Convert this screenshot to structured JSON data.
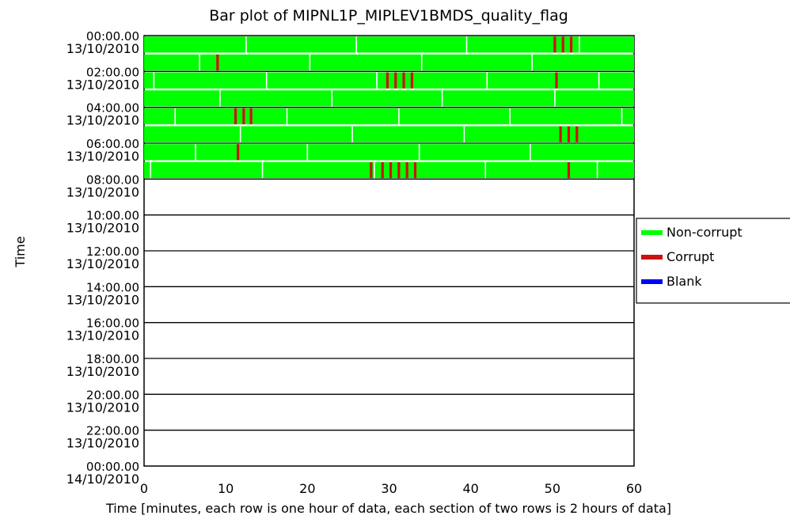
{
  "chart_data": {
    "type": "bar",
    "title": "Bar plot of MIPNL1P_MIPLEV1BMDS_quality_flag",
    "xlabel": "Time [minutes, each row is one hour of data, each section of two rows is 2 hours of data]",
    "ylabel": "Time",
    "xlim": [
      0,
      60
    ],
    "x_ticks": [
      "0",
      "10",
      "20",
      "30",
      "40",
      "50",
      "60"
    ],
    "y_tick_labels": [
      {
        "time": "00:00.00",
        "date": "13/10/2010"
      },
      {
        "time": "02:00.00",
        "date": "13/10/2010"
      },
      {
        "time": "04:00.00",
        "date": "13/10/2010"
      },
      {
        "time": "06:00.00",
        "date": "13/10/2010"
      },
      {
        "time": "08:00.00",
        "date": "13/10/2010"
      },
      {
        "time": "10:00.00",
        "date": "13/10/2010"
      },
      {
        "time": "12:00.00",
        "date": "13/10/2010"
      },
      {
        "time": "14:00.00",
        "date": "13/10/2010"
      },
      {
        "time": "16:00.00",
        "date": "13/10/2010"
      },
      {
        "time": "18:00.00",
        "date": "13/10/2010"
      },
      {
        "time": "20:00.00",
        "date": "13/10/2010"
      },
      {
        "time": "22:00.00",
        "date": "13/10/2010"
      },
      {
        "time": "00:00.00",
        "date": "14/10/2010"
      }
    ],
    "legend_position": "right",
    "legend": [
      {
        "label": "Non-corrupt",
        "color": "#00ff00"
      },
      {
        "label": "Corrupt",
        "color": "#cc1111"
      },
      {
        "label": "Blank",
        "color": "#0000ff"
      }
    ],
    "n_rows": 24,
    "rows": [
      {
        "hour": 0,
        "start": 0,
        "end": 60,
        "segment_breaks": [
          12.5,
          26,
          39.5,
          53.3
        ],
        "corrupt": [
          50.3,
          51.3,
          52.3
        ]
      },
      {
        "hour": 1,
        "start": 0,
        "end": 60,
        "segment_breaks": [
          6.8,
          20.3,
          34,
          47.5
        ],
        "corrupt": [
          9
        ]
      },
      {
        "hour": 2,
        "start": 0,
        "end": 60,
        "segment_breaks": [
          1.2,
          15,
          28.5,
          42,
          55.7
        ],
        "corrupt": [
          29.8,
          30.8,
          31.8,
          32.8,
          50.5
        ]
      },
      {
        "hour": 3,
        "start": 0,
        "end": 60,
        "segment_breaks": [
          9.3,
          23,
          36.5,
          50.3
        ],
        "corrupt": []
      },
      {
        "hour": 4,
        "start": 0,
        "end": 60,
        "segment_breaks": [
          3.8,
          17.5,
          31.2,
          44.8,
          58.5
        ],
        "corrupt": [
          11.2,
          12.2,
          13.1
        ]
      },
      {
        "hour": 5,
        "start": 0,
        "end": 60,
        "segment_breaks": [
          11.8,
          25.5,
          39.2,
          53
        ],
        "corrupt": [
          51,
          52,
          53
        ]
      },
      {
        "hour": 6,
        "start": 0,
        "end": 60,
        "segment_breaks": [
          6.3,
          20,
          33.7,
          47.3
        ],
        "corrupt": [
          11.5
        ]
      },
      {
        "hour": 7,
        "start": 0,
        "end": 60,
        "segment_breaks": [
          0.8,
          14.5,
          28.2,
          41.8,
          55.5
        ],
        "corrupt": [
          27.8,
          29.2,
          30.2,
          31.2,
          32.2,
          33.2,
          52
        ]
      },
      {
        "hour": 8,
        "start": null,
        "end": null,
        "segment_breaks": [],
        "corrupt": []
      },
      {
        "hour": 9,
        "start": null,
        "end": null,
        "segment_breaks": [],
        "corrupt": []
      },
      {
        "hour": 10,
        "start": null,
        "end": null,
        "segment_breaks": [],
        "corrupt": []
      },
      {
        "hour": 11,
        "start": null,
        "end": null,
        "segment_breaks": [],
        "corrupt": []
      },
      {
        "hour": 12,
        "start": null,
        "end": null,
        "segment_breaks": [],
        "corrupt": []
      },
      {
        "hour": 13,
        "start": null,
        "end": null,
        "segment_breaks": [],
        "corrupt": []
      },
      {
        "hour": 14,
        "start": null,
        "end": null,
        "segment_breaks": [],
        "corrupt": []
      },
      {
        "hour": 15,
        "start": null,
        "end": null,
        "segment_breaks": [],
        "corrupt": []
      },
      {
        "hour": 16,
        "start": null,
        "end": null,
        "segment_breaks": [],
        "corrupt": []
      },
      {
        "hour": 17,
        "start": null,
        "end": null,
        "segment_breaks": [],
        "corrupt": []
      },
      {
        "hour": 18,
        "start": null,
        "end": null,
        "segment_breaks": [],
        "corrupt": []
      },
      {
        "hour": 19,
        "start": null,
        "end": null,
        "segment_breaks": [],
        "corrupt": []
      },
      {
        "hour": 20,
        "start": null,
        "end": null,
        "segment_breaks": [],
        "corrupt": []
      },
      {
        "hour": 21,
        "start": null,
        "end": null,
        "segment_breaks": [],
        "corrupt": []
      },
      {
        "hour": 22,
        "start": null,
        "end": null,
        "segment_breaks": [],
        "corrupt": []
      },
      {
        "hour": 23,
        "start": null,
        "end": null,
        "segment_breaks": [],
        "corrupt": []
      }
    ]
  }
}
